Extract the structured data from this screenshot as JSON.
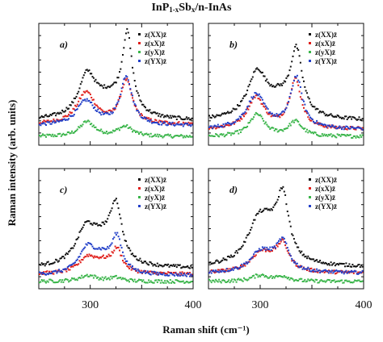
{
  "figure": {
    "title_main": "InP",
    "title_sub1": "1-x",
    "title_mid": "Sb",
    "title_sub2": "x",
    "title_end": "/n-InAs",
    "ylabel": "Raman intensity (arb. units)",
    "xlabel": "Raman shift (cm⁻¹)",
    "colors": {
      "XX": "#111111",
      "xX": "#e0201c",
      "yX": "#3ab54a",
      "YX": "#2340c8"
    }
  },
  "chart_data": [
    {
      "type": "scatter",
      "panel": "a)",
      "xlim": [
        250,
        400
      ],
      "ylim": [
        0,
        1
      ],
      "x_ticks": [
        300,
        400
      ],
      "legend": [
        "z(XX)z̄",
        "z(xX)z̄",
        "z(yX)z̄",
        "z(YX)z̄"
      ],
      "series": [
        {
          "name": "z(XX)z̄",
          "peaks": [
            [
              297,
              0.33,
              10
            ],
            [
              336,
              0.64,
              6
            ],
            [
              318,
              0.16,
              18
            ]
          ],
          "base": 0.2
        },
        {
          "name": "z(xX)z̄",
          "peaks": [
            [
              296,
              0.26,
              11
            ],
            [
              335,
              0.35,
              7
            ]
          ],
          "base": 0.17
        },
        {
          "name": "z(yX)z̄",
          "peaks": [
            [
              297,
              0.12,
              9
            ],
            [
              334,
              0.08,
              9
            ]
          ],
          "base": 0.07
        },
        {
          "name": "z(YX)z̄",
          "peaks": [
            [
              296,
              0.2,
              11
            ],
            [
              335,
              0.4,
              7
            ]
          ],
          "base": 0.16
        }
      ]
    },
    {
      "type": "scatter",
      "panel": "b)",
      "xlim": [
        250,
        400
      ],
      "ylim": [
        0,
        1
      ],
      "x_ticks": [
        300,
        400
      ],
      "legend": [
        "z(XX)z̄",
        "z(xX)z̄",
        "z(yX)z̄",
        "z(YX)z̄"
      ],
      "series": [
        {
          "name": "z(XX)z̄",
          "peaks": [
            [
              297,
              0.36,
              11
            ],
            [
              335,
              0.52,
              7
            ],
            [
              318,
              0.14,
              16
            ]
          ],
          "base": 0.2
        },
        {
          "name": "z(xX)z̄",
          "peaks": [
            [
              296,
              0.26,
              10
            ],
            [
              334,
              0.4,
              7
            ]
          ],
          "base": 0.13
        },
        {
          "name": "z(yX)z̄",
          "peaks": [
            [
              297,
              0.18,
              9
            ],
            [
              334,
              0.12,
              8
            ]
          ],
          "base": 0.07
        },
        {
          "name": "z(YX)z̄",
          "peaks": [
            [
              296,
              0.28,
              11
            ],
            [
              335,
              0.42,
              7
            ]
          ],
          "base": 0.13
        }
      ]
    },
    {
      "type": "scatter",
      "panel": "c)",
      "xlim": [
        250,
        400
      ],
      "ylim": [
        0,
        1
      ],
      "x_ticks": [
        300,
        400
      ],
      "legend": [
        "z(XX)z̄",
        "z(xX)z̄",
        "z(yX)z̄",
        "z(YX)z̄"
      ],
      "series": [
        {
          "name": "z(XX)z̄",
          "peaks": [
            [
              296,
              0.3,
              12
            ],
            [
              325,
              0.46,
              7
            ],
            [
              312,
              0.16,
              12
            ]
          ],
          "base": 0.17
        },
        {
          "name": "z(xX)z̄",
          "peaks": [
            [
              297,
              0.12,
              10
            ],
            [
              326,
              0.18,
              6
            ],
            [
              312,
              0.08,
              12
            ]
          ],
          "base": 0.12
        },
        {
          "name": "z(yX)z̄",
          "peaks": [
            [
              298,
              0.05,
              10
            ],
            [
              325,
              0.03,
              8
            ]
          ],
          "base": 0.06
        },
        {
          "name": "z(YX)z̄",
          "peaks": [
            [
              297,
              0.2,
              10
            ],
            [
              326,
              0.28,
              6
            ],
            [
              312,
              0.12,
              12
            ]
          ],
          "base": 0.11
        }
      ]
    },
    {
      "type": "scatter",
      "panel": "d)",
      "xlim": [
        250,
        400
      ],
      "ylim": [
        0,
        1
      ],
      "x_ticks": [
        300,
        400
      ],
      "legend": [
        "z(XX)z̄",
        "z(xX)z̄",
        "z(yX)z̄",
        "z(YX)z̄"
      ],
      "series": [
        {
          "name": "z(XX)z̄",
          "peaks": [
            [
              298,
              0.32,
              13
            ],
            [
              322,
              0.5,
              7
            ],
            [
              310,
              0.18,
              12
            ]
          ],
          "base": 0.18
        },
        {
          "name": "z(xX)z̄",
          "peaks": [
            [
              300,
              0.14,
              12
            ],
            [
              322,
              0.2,
              7
            ],
            [
              312,
              0.06,
              12
            ]
          ],
          "base": 0.13
        },
        {
          "name": "z(yX)z̄",
          "peaks": [
            [
              300,
              0.05,
              10
            ],
            [
              322,
              0.04,
              8
            ]
          ],
          "base": 0.06
        },
        {
          "name": "z(YX)z̄",
          "peaks": [
            [
              300,
              0.15,
              12
            ],
            [
              322,
              0.22,
              7
            ],
            [
              312,
              0.06,
              12
            ]
          ],
          "base": 0.13
        }
      ]
    }
  ]
}
